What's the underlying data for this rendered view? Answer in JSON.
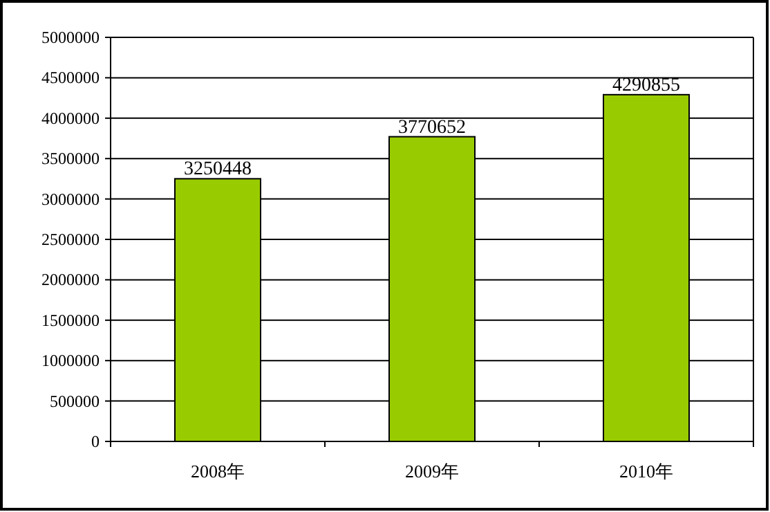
{
  "chart_data": {
    "type": "bar",
    "categories": [
      "2008年",
      "2009年",
      "2010年"
    ],
    "values": [
      3250448,
      3770652,
      4290855
    ],
    "color": "#99cc00",
    "ylim": [
      0,
      5000000
    ],
    "yticks": [
      0,
      500000,
      1000000,
      1500000,
      2000000,
      2500000,
      3000000,
      3500000,
      4000000,
      4500000,
      5000000
    ],
    "grid": "y",
    "data_labels": true
  }
}
